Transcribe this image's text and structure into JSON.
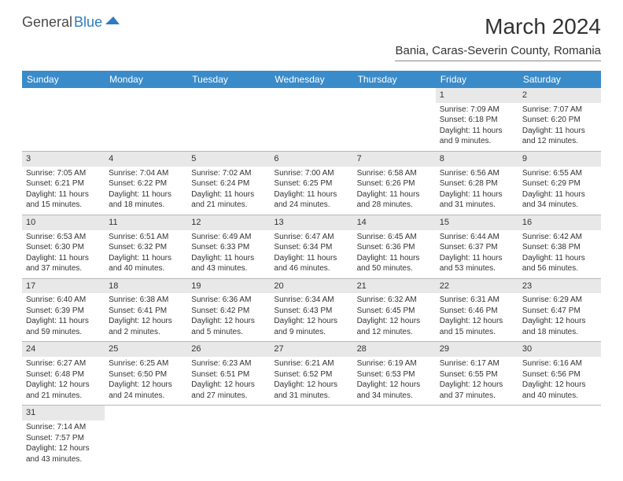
{
  "logo": {
    "text1": "General",
    "text2": "Blue"
  },
  "title": "March 2024",
  "location": "Bania, Caras-Severin County, Romania",
  "colors": {
    "header_bg": "#3a8bc9",
    "header_text": "#ffffff",
    "daynum_bg": "#e8e8e8",
    "border": "#b8b8b8",
    "text": "#333333",
    "logo_blue": "#2f7bbf"
  },
  "dayNames": [
    "Sunday",
    "Monday",
    "Tuesday",
    "Wednesday",
    "Thursday",
    "Friday",
    "Saturday"
  ],
  "startOffset": 5,
  "days": [
    {
      "n": 1,
      "sunrise": "7:09 AM",
      "sunset": "6:18 PM",
      "daylight": "11 hours and 9 minutes."
    },
    {
      "n": 2,
      "sunrise": "7:07 AM",
      "sunset": "6:20 PM",
      "daylight": "11 hours and 12 minutes."
    },
    {
      "n": 3,
      "sunrise": "7:05 AM",
      "sunset": "6:21 PM",
      "daylight": "11 hours and 15 minutes."
    },
    {
      "n": 4,
      "sunrise": "7:04 AM",
      "sunset": "6:22 PM",
      "daylight": "11 hours and 18 minutes."
    },
    {
      "n": 5,
      "sunrise": "7:02 AM",
      "sunset": "6:24 PM",
      "daylight": "11 hours and 21 minutes."
    },
    {
      "n": 6,
      "sunrise": "7:00 AM",
      "sunset": "6:25 PM",
      "daylight": "11 hours and 24 minutes."
    },
    {
      "n": 7,
      "sunrise": "6:58 AM",
      "sunset": "6:26 PM",
      "daylight": "11 hours and 28 minutes."
    },
    {
      "n": 8,
      "sunrise": "6:56 AM",
      "sunset": "6:28 PM",
      "daylight": "11 hours and 31 minutes."
    },
    {
      "n": 9,
      "sunrise": "6:55 AM",
      "sunset": "6:29 PM",
      "daylight": "11 hours and 34 minutes."
    },
    {
      "n": 10,
      "sunrise": "6:53 AM",
      "sunset": "6:30 PM",
      "daylight": "11 hours and 37 minutes."
    },
    {
      "n": 11,
      "sunrise": "6:51 AM",
      "sunset": "6:32 PM",
      "daylight": "11 hours and 40 minutes."
    },
    {
      "n": 12,
      "sunrise": "6:49 AM",
      "sunset": "6:33 PM",
      "daylight": "11 hours and 43 minutes."
    },
    {
      "n": 13,
      "sunrise": "6:47 AM",
      "sunset": "6:34 PM",
      "daylight": "11 hours and 46 minutes."
    },
    {
      "n": 14,
      "sunrise": "6:45 AM",
      "sunset": "6:36 PM",
      "daylight": "11 hours and 50 minutes."
    },
    {
      "n": 15,
      "sunrise": "6:44 AM",
      "sunset": "6:37 PM",
      "daylight": "11 hours and 53 minutes."
    },
    {
      "n": 16,
      "sunrise": "6:42 AM",
      "sunset": "6:38 PM",
      "daylight": "11 hours and 56 minutes."
    },
    {
      "n": 17,
      "sunrise": "6:40 AM",
      "sunset": "6:39 PM",
      "daylight": "11 hours and 59 minutes."
    },
    {
      "n": 18,
      "sunrise": "6:38 AM",
      "sunset": "6:41 PM",
      "daylight": "12 hours and 2 minutes."
    },
    {
      "n": 19,
      "sunrise": "6:36 AM",
      "sunset": "6:42 PM",
      "daylight": "12 hours and 5 minutes."
    },
    {
      "n": 20,
      "sunrise": "6:34 AM",
      "sunset": "6:43 PM",
      "daylight": "12 hours and 9 minutes."
    },
    {
      "n": 21,
      "sunrise": "6:32 AM",
      "sunset": "6:45 PM",
      "daylight": "12 hours and 12 minutes."
    },
    {
      "n": 22,
      "sunrise": "6:31 AM",
      "sunset": "6:46 PM",
      "daylight": "12 hours and 15 minutes."
    },
    {
      "n": 23,
      "sunrise": "6:29 AM",
      "sunset": "6:47 PM",
      "daylight": "12 hours and 18 minutes."
    },
    {
      "n": 24,
      "sunrise": "6:27 AM",
      "sunset": "6:48 PM",
      "daylight": "12 hours and 21 minutes."
    },
    {
      "n": 25,
      "sunrise": "6:25 AM",
      "sunset": "6:50 PM",
      "daylight": "12 hours and 24 minutes."
    },
    {
      "n": 26,
      "sunrise": "6:23 AM",
      "sunset": "6:51 PM",
      "daylight": "12 hours and 27 minutes."
    },
    {
      "n": 27,
      "sunrise": "6:21 AM",
      "sunset": "6:52 PM",
      "daylight": "12 hours and 31 minutes."
    },
    {
      "n": 28,
      "sunrise": "6:19 AM",
      "sunset": "6:53 PM",
      "daylight": "12 hours and 34 minutes."
    },
    {
      "n": 29,
      "sunrise": "6:17 AM",
      "sunset": "6:55 PM",
      "daylight": "12 hours and 37 minutes."
    },
    {
      "n": 30,
      "sunrise": "6:16 AM",
      "sunset": "6:56 PM",
      "daylight": "12 hours and 40 minutes."
    },
    {
      "n": 31,
      "sunrise": "7:14 AM",
      "sunset": "7:57 PM",
      "daylight": "12 hours and 43 minutes."
    }
  ]
}
